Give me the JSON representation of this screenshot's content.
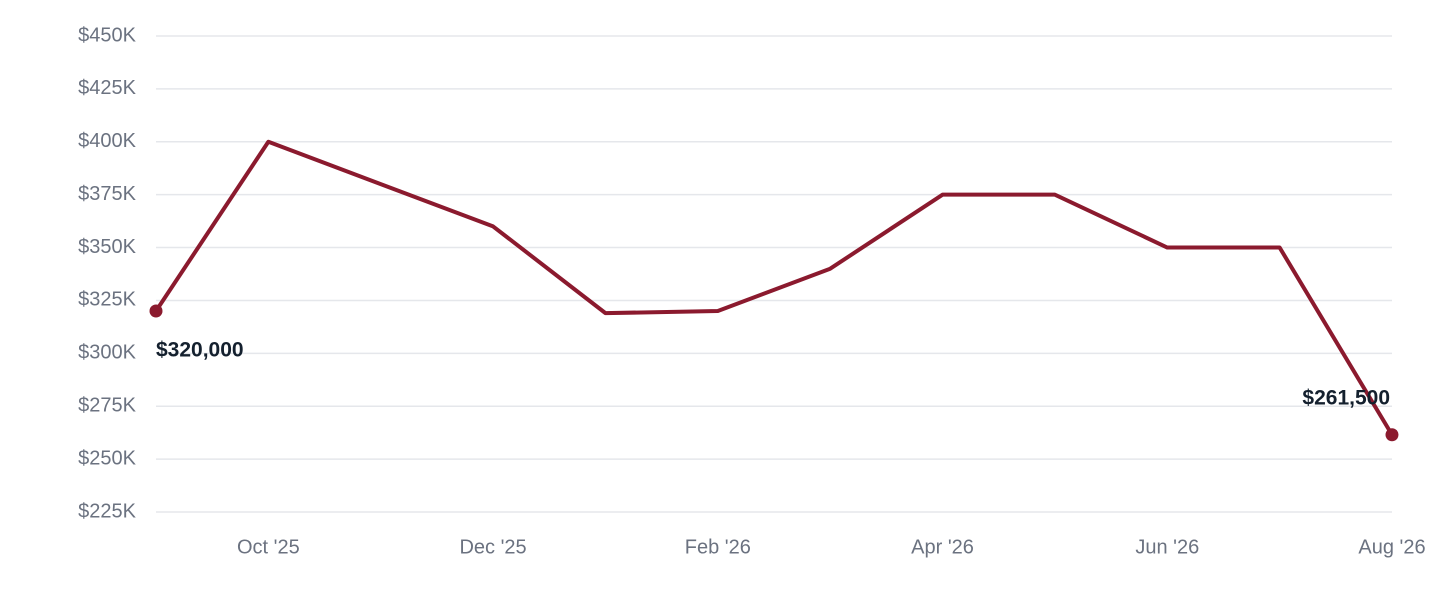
{
  "chart_data": {
    "type": "line",
    "categories": [
      null,
      "Oct '25",
      null,
      "Dec '25",
      null,
      "Feb '26",
      null,
      "Apr '26",
      null,
      "Jun '26",
      null,
      "Aug '26"
    ],
    "series": [
      {
        "name": null,
        "color": "#8b1a2e",
        "values": [
          320000,
          400000,
          380000,
          360000,
          319000,
          320000,
          340000,
          375000,
          375000,
          350000,
          350000,
          261500
        ],
        "value_labels": [
          "$320,000",
          null,
          null,
          null,
          null,
          null,
          null,
          null,
          null,
          null,
          null,
          "$261,500"
        ]
      }
    ],
    "ylim": [
      225000,
      450000
    ],
    "yticks": [
      {
        "value": 225000,
        "label": "$225K"
      },
      {
        "value": 250000,
        "label": "$250K"
      },
      {
        "value": 275000,
        "label": "$275K"
      },
      {
        "value": 300000,
        "label": "$300K"
      },
      {
        "value": 325000,
        "label": "$325K"
      },
      {
        "value": 350000,
        "label": "$350K"
      },
      {
        "value": 375000,
        "label": "$375K"
      },
      {
        "value": 400000,
        "label": "$400K"
      },
      {
        "value": 425000,
        "label": "$425K"
      },
      {
        "value": 450000,
        "label": "$450K"
      }
    ],
    "grid": true
  }
}
